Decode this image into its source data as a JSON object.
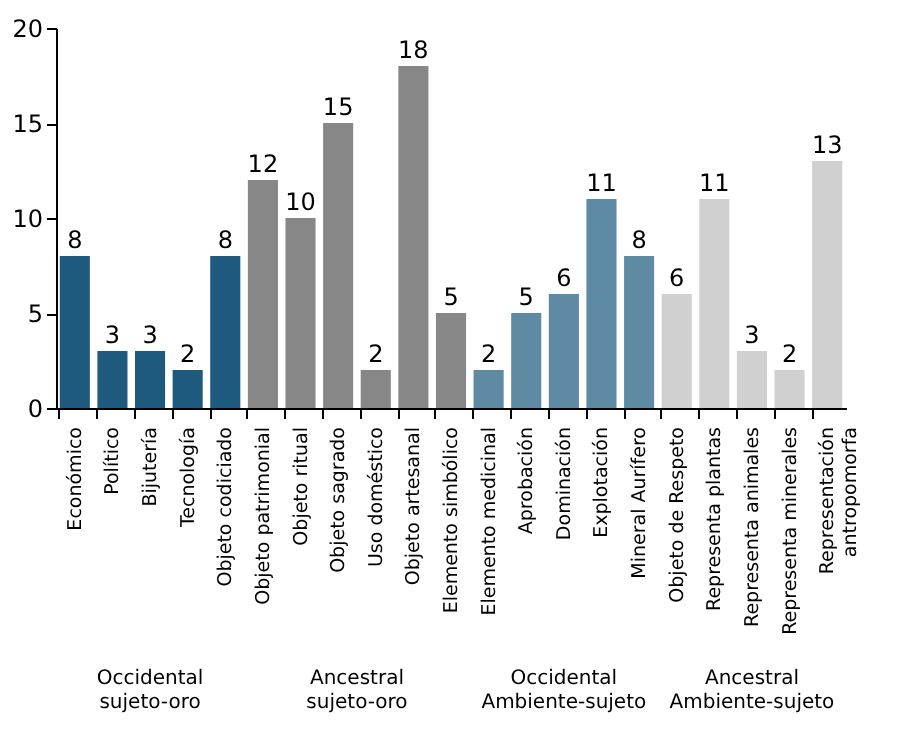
{
  "chart_data": {
    "type": "bar",
    "categories": [
      "Económico",
      "Político",
      "Bijutería",
      "Tecnología",
      "Objeto codiciado",
      "Objeto patrimonial",
      "Objeto ritual",
      "Objeto sagrado",
      "Uso doméstico",
      "Objeto artesanal",
      "Elemento simbólico",
      "Elemento medicinal",
      "Aprobación",
      "Dominación",
      "Explotación",
      "Mineral  Aurífero",
      "Objeto de Respeto",
      "Representa plantas",
      "Representa animales",
      "Representa minerales",
      "Representación antropomorfa"
    ],
    "values": [
      8,
      3,
      3,
      2,
      8,
      12,
      10,
      15,
      2,
      18,
      5,
      2,
      5,
      6,
      11,
      8,
      6,
      11,
      3,
      2,
      13
    ],
    "colors": [
      "#1d5a7e",
      "#1d5a7e",
      "#1d5a7e",
      "#1d5a7e",
      "#1d5a7e",
      "#878787",
      "#878787",
      "#878787",
      "#878787",
      "#878787",
      "#878787",
      "#5e8aa3",
      "#5e8aa3",
      "#5e8aa3",
      "#5e8aa3",
      "#5e8aa3",
      "#d0d0d0",
      "#d0d0d0",
      "#d0d0d0",
      "#d0d0d0",
      "#d0d0d0"
    ],
    "ylim": [
      0,
      20
    ],
    "yticks": [
      0,
      5,
      10,
      15,
      20
    ],
    "grid": false,
    "data_labels": true,
    "annotations": [
      "Occidental\nsujeto-oro",
      "Ancestral\nsujeto-oro",
      "Occidental\nAmbiente-sujeto",
      "Ancestral\nAmbiente-sujeto"
    ]
  }
}
